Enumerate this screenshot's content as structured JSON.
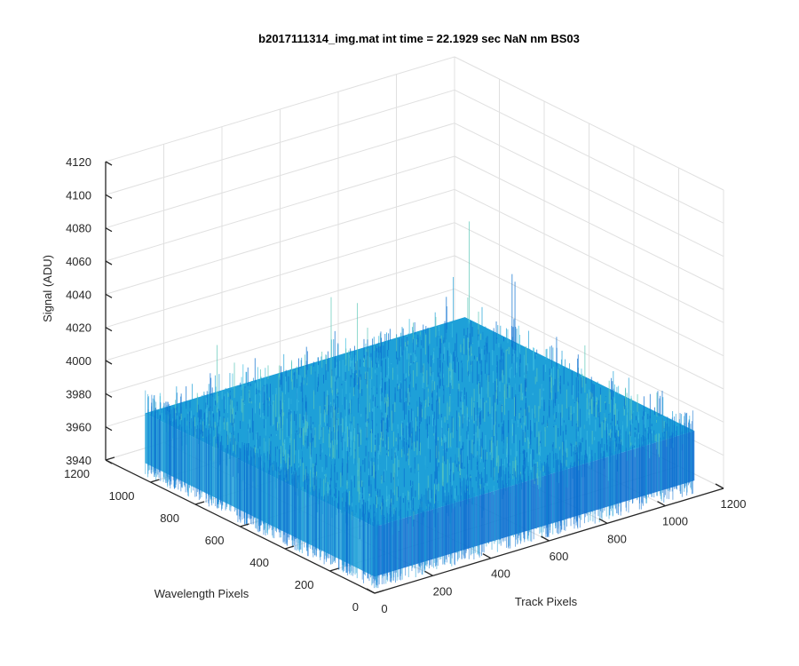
{
  "chart_data": {
    "type": "surface",
    "title": "b2017111314_img.mat int time = 22.1929 sec  NaN nm BS03",
    "xlabel": "Track Pixels",
    "ylabel": "Wavelength Pixels",
    "zlabel": "Signal (ADU)",
    "xlim": [
      0,
      1200
    ],
    "ylim": [
      0,
      1200
    ],
    "zlim": [
      3940,
      4120
    ],
    "x_ticks": [
      "0",
      "200",
      "400",
      "600",
      "800",
      "1000",
      "1200"
    ],
    "y_ticks": [
      "0",
      "200",
      "400",
      "600",
      "800",
      "1000",
      "1200"
    ],
    "z_ticks": [
      "3940",
      "3960",
      "3980",
      "4000",
      "4020",
      "4040",
      "4060",
      "4080",
      "4100",
      "4120"
    ],
    "grid": true,
    "data_extent": {
      "x": [
        0,
        1100
      ],
      "y": [
        0,
        1024
      ]
    },
    "signal_mean": 3980,
    "signal_range": [
      3950,
      4045
    ],
    "colors": {
      "surface_main": "#1ea0d8",
      "surface_dark": "#0a6fd0",
      "surface_light": "#3fbfe0",
      "accent": "#5cc8b8"
    }
  }
}
